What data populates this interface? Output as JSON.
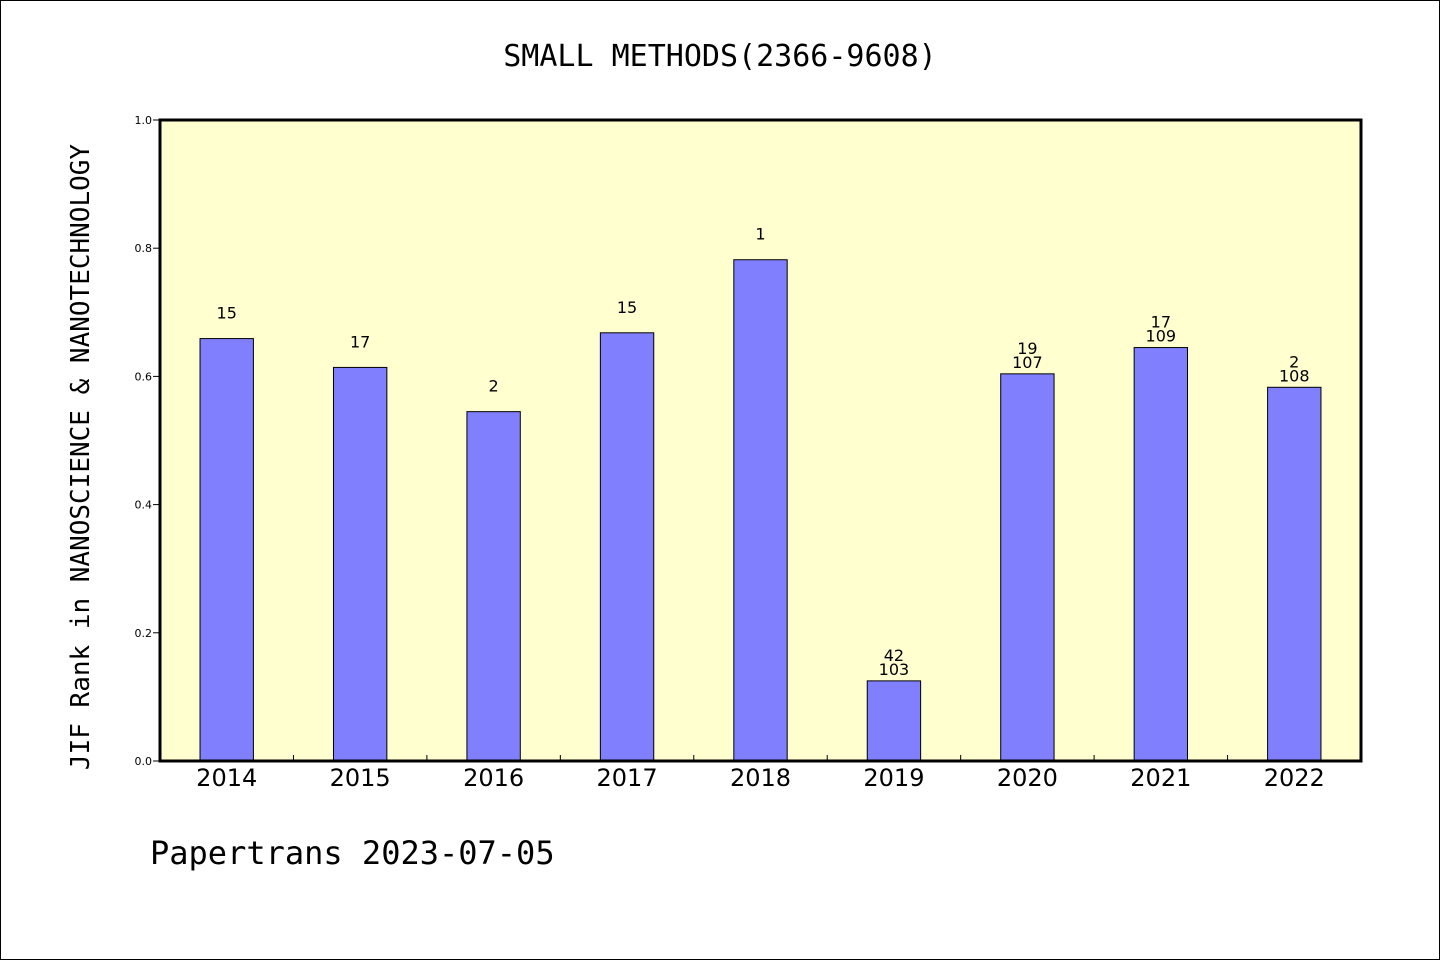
{
  "chart_data": {
    "type": "bar",
    "title": "SMALL METHODS(2366-9608)",
    "ylabel": "JIF Rank in NANOSCIENCE & NANOTECHNOLOGY",
    "xlabel": "",
    "ylim": [
      0,
      1.0
    ],
    "yticks": [
      "0.0",
      "0.2",
      "0.4",
      "0.6",
      "0.8",
      "1.0"
    ],
    "categories": [
      "2014",
      "2015",
      "2016",
      "2017",
      "2018",
      "2019",
      "2020",
      "2021",
      "2022"
    ],
    "values": [
      0.659,
      0.614,
      0.545,
      0.668,
      0.782,
      0.125,
      0.604,
      0.645,
      0.583
    ],
    "labels": [
      [
        "15"
      ],
      [
        "17"
      ],
      [
        "2"
      ],
      [
        "15"
      ],
      [
        "1"
      ],
      [
        "42",
        "103"
      ],
      [
        "19",
        "107"
      ],
      [
        "17",
        "109"
      ],
      [
        "2",
        "108"
      ]
    ],
    "colors": {
      "bar": "#8080ff",
      "plot_bg": "#ffffd0"
    },
    "grid": false
  },
  "footer": "Papertrans 2023-07-05"
}
